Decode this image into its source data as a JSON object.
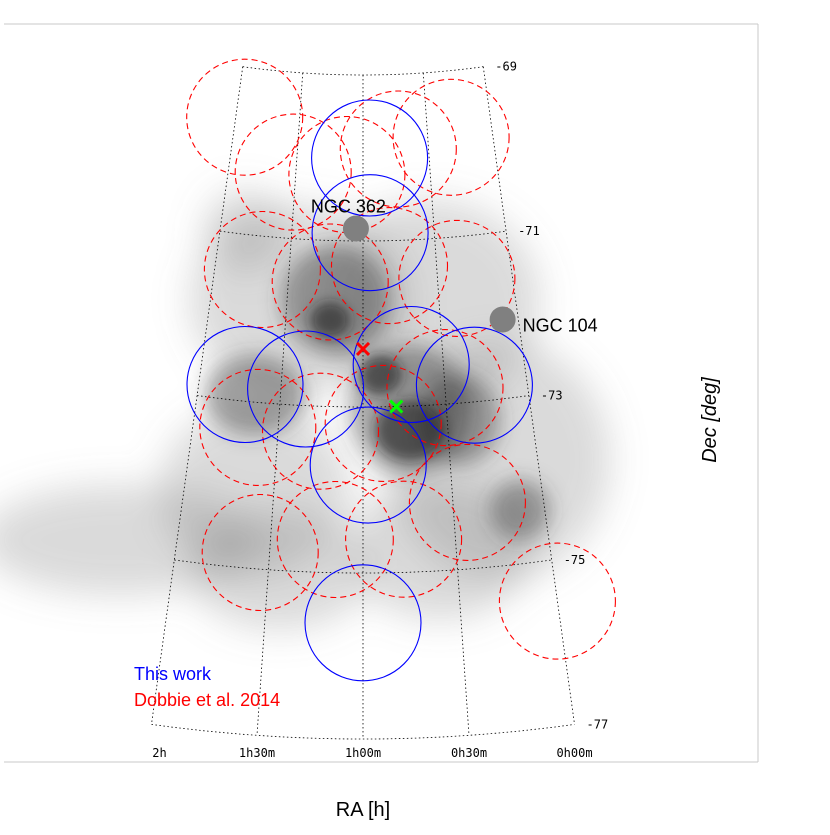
{
  "chart_data": {
    "type": "scatter",
    "projection": "sky map (RA/Dec)",
    "xlabel": "RA [h]",
    "ylabel": "Dec [deg]",
    "x_ticks": [
      "2h",
      "1h30m",
      "1h00m",
      "0h30m",
      "0h00m"
    ],
    "y_ticks": [
      "-69",
      "-71",
      "-73",
      "-75",
      "-77"
    ],
    "background": "grayscale density map of the Small Magellanic Cloud",
    "grid": true,
    "legend_position": "bottom-left",
    "legend": [
      {
        "label": "This work",
        "color": "#0000ff",
        "style": "solid"
      },
      {
        "label": "Dobbie et al. 2014",
        "color": "#ff0000",
        "style": "dashed"
      }
    ],
    "series": [
      {
        "name": "This work",
        "color": "#0000ff",
        "style": "solid",
        "fields": [
          {
            "ra_h": 0.95,
            "dec": -70.0
          },
          {
            "ra_h": 0.95,
            "dec": -70.9
          },
          {
            "ra_h": 0.7,
            "dec": -72.5
          },
          {
            "ra_h": 0.32,
            "dec": -72.8
          },
          {
            "ra_h": 1.72,
            "dec": -72.8
          },
          {
            "ra_h": 1.35,
            "dec": -72.8
          },
          {
            "ra_h": 0.97,
            "dec": -73.7
          },
          {
            "ra_h": 1.0,
            "dec": -75.6
          }
        ]
      },
      {
        "name": "Dobbie et al. 2014",
        "color": "#ff0000",
        "style": "dashed",
        "fields": [
          {
            "ra_h": 1.93,
            "dec": -69.6
          },
          {
            "ra_h": 1.52,
            "dec": -70.2
          },
          {
            "ra_h": 1.12,
            "dec": -70.2
          },
          {
            "ra_h": 0.73,
            "dec": -69.9
          },
          {
            "ra_h": 0.32,
            "dec": -69.8
          },
          {
            "ra_h": 1.68,
            "dec": -71.4
          },
          {
            "ra_h": 1.22,
            "dec": -71.5
          },
          {
            "ra_h": 0.82,
            "dec": -71.3
          },
          {
            "ra_h": 0.37,
            "dec": -71.5
          },
          {
            "ra_h": 1.62,
            "dec": -73.3
          },
          {
            "ra_h": 1.25,
            "dec": -73.3
          },
          {
            "ra_h": 0.88,
            "dec": -73.2
          },
          {
            "ra_h": 0.5,
            "dec": -72.8
          },
          {
            "ra_h": 0.42,
            "dec": -74.2
          },
          {
            "ra_h": 0.78,
            "dec": -74.6
          },
          {
            "ra_h": 1.15,
            "dec": -74.6
          },
          {
            "ra_h": 1.55,
            "dec": -74.8
          },
          {
            "ra_h": 0.0,
            "dec": -75.5
          }
        ]
      }
    ],
    "markers": [
      {
        "name": "red-cross",
        "color": "#ff0000",
        "ra_h": 1.0,
        "dec": -72.3
      },
      {
        "name": "green-cross",
        "color": "#00ff00",
        "ra_h": 0.8,
        "dec": -73.0
      }
    ],
    "clusters": [
      {
        "label": "NGC 362",
        "ra_h": 1.05,
        "dec": -70.85
      },
      {
        "label": "NGC 104",
        "ra_h": 0.1,
        "dec": -72.05
      }
    ]
  }
}
